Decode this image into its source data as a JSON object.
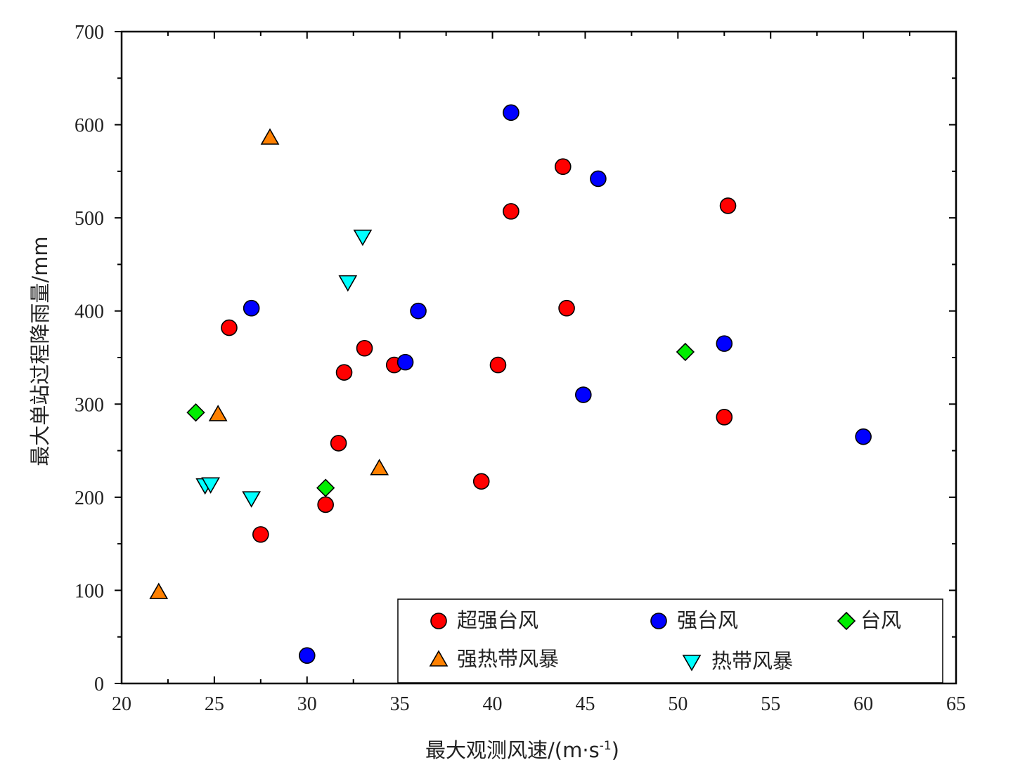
{
  "chart_data": {
    "type": "scatter",
    "title": "",
    "xlabel": "最大观测风速/(m·s",
    "xlabel_sup": "-1",
    "xlabel_close": ")",
    "ylabel": "最大单站过程降雨量/mm",
    "xlim": [
      20,
      65
    ],
    "ylim": [
      0,
      700
    ],
    "xticks": [
      20,
      25,
      30,
      35,
      40,
      45,
      50,
      55,
      60,
      65
    ],
    "yticks": [
      0,
      100,
      200,
      300,
      400,
      500,
      600,
      700
    ],
    "grid": false,
    "legend_placement": "bottom-right",
    "series": [
      {
        "name": "超强台风",
        "marker": "circle",
        "color": "#ff0000",
        "points": [
          [
            25.8,
            382
          ],
          [
            27.5,
            160
          ],
          [
            31.0,
            192
          ],
          [
            31.7,
            258
          ],
          [
            32.0,
            334
          ],
          [
            33.1,
            360
          ],
          [
            34.7,
            342
          ],
          [
            39.4,
            217
          ],
          [
            40.3,
            342
          ],
          [
            41.0,
            507
          ],
          [
            43.8,
            555
          ],
          [
            44.0,
            403
          ],
          [
            52.5,
            286
          ],
          [
            52.7,
            513
          ]
        ]
      },
      {
        "name": "强台风",
        "marker": "circle",
        "color": "#0000ff",
        "points": [
          [
            27.0,
            403
          ],
          [
            30.0,
            30
          ],
          [
            35.3,
            345
          ],
          [
            36.0,
            400
          ],
          [
            41.0,
            613
          ],
          [
            44.9,
            310
          ],
          [
            45.7,
            542
          ],
          [
            52.5,
            365
          ],
          [
            60.0,
            265
          ]
        ]
      },
      {
        "name": "台风",
        "marker": "diamond",
        "color": "#00ee00",
        "points": [
          [
            24.0,
            291
          ],
          [
            31.0,
            210
          ],
          [
            50.4,
            356
          ]
        ]
      },
      {
        "name": "强热带风暴",
        "marker": "triangle-up",
        "color": "#ff8000",
        "points": [
          [
            22.0,
            98
          ],
          [
            25.2,
            289
          ],
          [
            28.0,
            586
          ],
          [
            33.9,
            231
          ]
        ]
      },
      {
        "name": "热带风暴",
        "marker": "triangle-down",
        "color": "#00ffff",
        "points": [
          [
            24.5,
            213
          ],
          [
            24.8,
            214
          ],
          [
            27.0,
            199
          ],
          [
            32.2,
            431
          ],
          [
            33.0,
            480
          ]
        ]
      }
    ]
  }
}
